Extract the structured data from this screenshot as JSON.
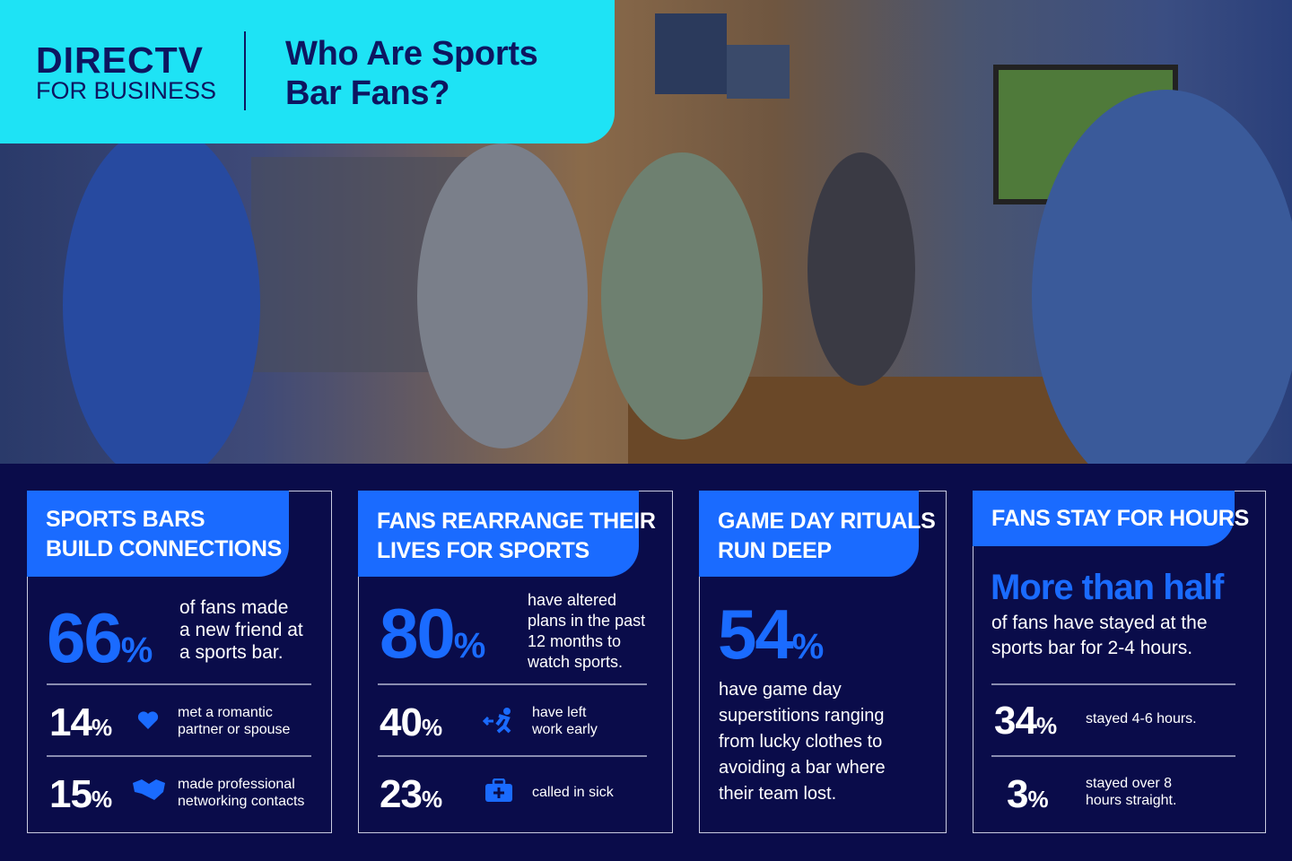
{
  "header": {
    "logo": {
      "brand": "DIRECTV",
      "sub": "FOR BUSINESS"
    },
    "title": [
      "Who Are Sports",
      "Bar Fans?"
    ]
  },
  "cards": [
    {
      "title": [
        "SPORTS BARS",
        "BUILD CONNECTIONS"
      ],
      "main": {
        "number": "66",
        "unit": "%",
        "text": [
          "of fans made",
          "a new friend at",
          "a sports bar."
        ]
      },
      "stats": [
        {
          "number": "14",
          "unit": "%",
          "text": [
            "met a romantic",
            "partner or spouse"
          ]
        },
        {
          "number": "15",
          "unit": "%",
          "text": [
            "made professional",
            "networking contacts"
          ]
        }
      ]
    },
    {
      "title": [
        "FANS REARRANGE THEIR",
        "LIVES FOR SPORTS"
      ],
      "main": {
        "number": "80",
        "unit": "%",
        "text": [
          "have altered",
          "plans in the past",
          "12 months to",
          "watch sports."
        ]
      },
      "stats": [
        {
          "number": "40",
          "unit": "%",
          "text": [
            "have left",
            "work early"
          ]
        },
        {
          "number": "23",
          "unit": "%",
          "text": [
            "called in sick"
          ]
        }
      ]
    },
    {
      "title": [
        "GAME DAY RITUALS",
        "RUN DEEP"
      ],
      "main": {
        "number": "54",
        "unit": "%",
        "text": [
          "have game day",
          "superstitions ranging",
          "from lucky clothes to",
          "avoiding a bar where",
          "their team lost."
        ]
      }
    },
    {
      "title": [
        "FANS STAY FOR HOURS"
      ],
      "main": {
        "headline": "More than half",
        "text": [
          "of fans have stayed at the",
          "sports bar for 2-4 hours."
        ]
      },
      "stats": [
        {
          "number": "34",
          "unit": "%",
          "text": [
            "stayed 4-6 hours."
          ]
        },
        {
          "number": "3",
          "unit": "%",
          "text": [
            "stayed over 8",
            "hours straight."
          ]
        }
      ]
    }
  ]
}
